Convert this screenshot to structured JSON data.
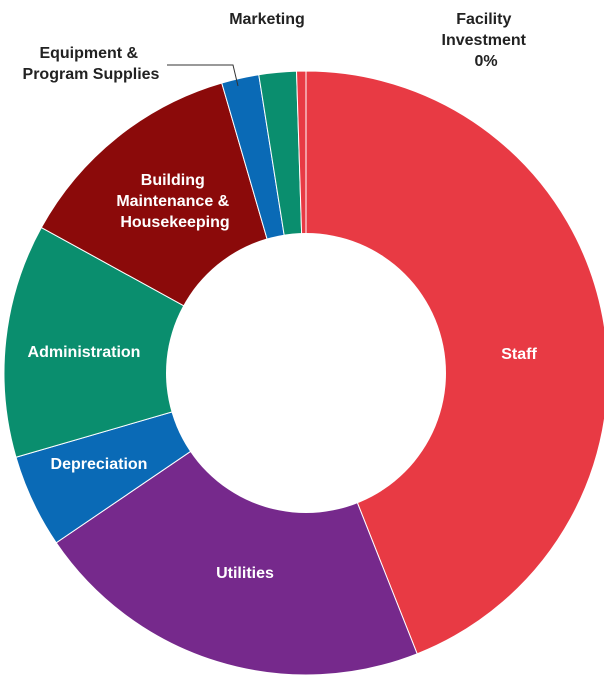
{
  "chart_data": {
    "type": "pie",
    "donut": true,
    "title": "",
    "slices": [
      {
        "label": "Staff",
        "value": 44.0,
        "color": "#E83A44"
      },
      {
        "label": "Utilities",
        "value": 21.5,
        "color": "#76298C"
      },
      {
        "label": "Depreciation",
        "value": 5.0,
        "color": "#0A6AB6"
      },
      {
        "label": "Administration",
        "value": 12.5,
        "color": "#0A8E6E"
      },
      {
        "label": "Building Maintenance & Housekeeping",
        "value": 12.5,
        "color": "#8B0A0A"
      },
      {
        "label": "Equipment & Program Supplies",
        "value": 2.0,
        "color": "#0A6AB6"
      },
      {
        "label": "Marketing",
        "value": 2.0,
        "color": "#0A8E6E"
      },
      {
        "label": "Facility Investment",
        "value": 0.5,
        "color": "#E83A44",
        "annotation": "0%"
      }
    ]
  }
}
